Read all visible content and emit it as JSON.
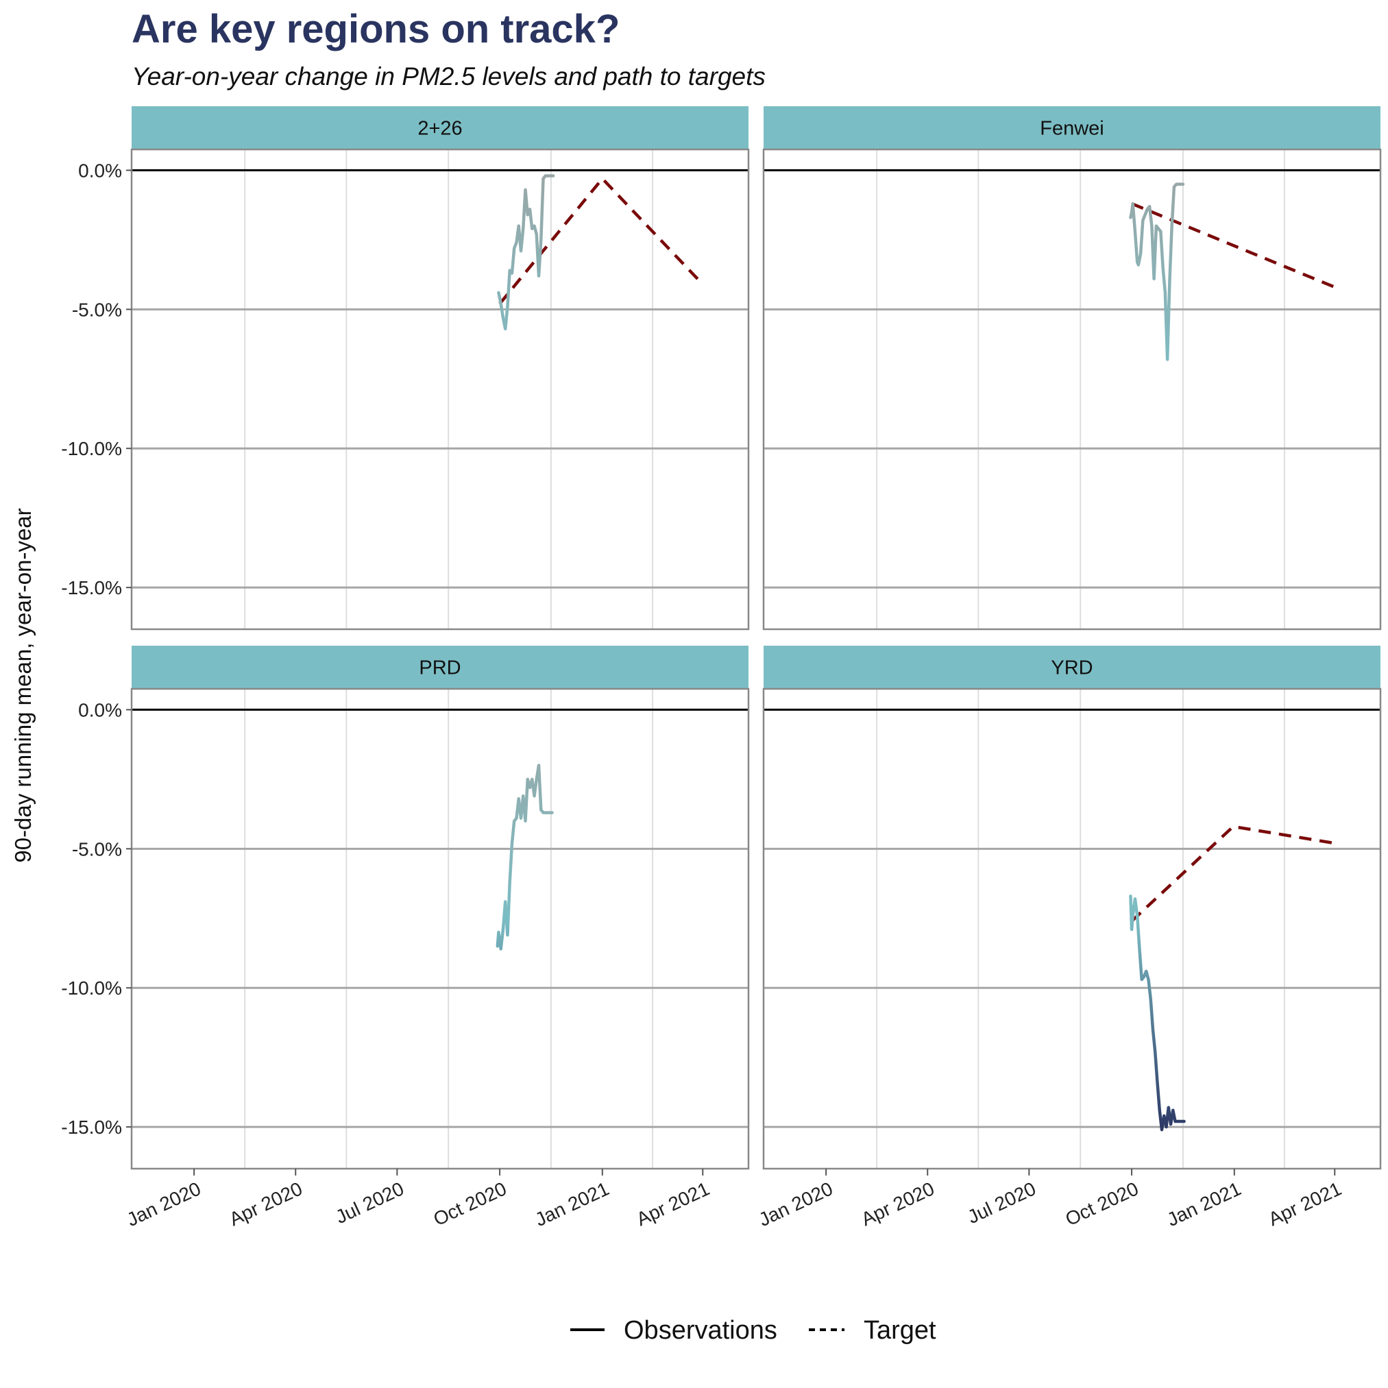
{
  "chart_data": {
    "type": "line",
    "title": "Are key regions on track?",
    "subtitle": "Year-on-year change in PM2.5 levels and path to targets",
    "ylabel": "90-day running mean, year-on-year",
    "xlabel": "",
    "xlim": [
      "2019-11-06",
      "2021-05-12"
    ],
    "ylim": [
      -16.5,
      0.75
    ],
    "y_ticks": [
      0,
      -5,
      -10,
      -15
    ],
    "y_tick_labels": [
      "0.0%",
      "-5.0%",
      "-10.0%",
      "-15.0%"
    ],
    "x_ticks": [
      "2020-01-01",
      "2020-04-01",
      "2020-07-01",
      "2020-10-01",
      "2021-01-01",
      "2021-04-01"
    ],
    "x_tick_labels": [
      "Jan 2020",
      "Apr 2020",
      "Jul 2020",
      "Oct 2020",
      "Jan 2021",
      "Apr 2021"
    ],
    "reference_line": 0,
    "grid": true,
    "legend": {
      "position": "bottom",
      "entries": [
        {
          "label": "Observations",
          "style": "solid"
        },
        {
          "label": "Target",
          "style": "dashed"
        }
      ]
    },
    "colors": {
      "strip": "#7bbdc4",
      "target": "#7a0a0a",
      "obs_low": "#2d3a66",
      "obs_mid": "#7bbdc4",
      "obs_high": "#9aa6a6",
      "title": "#2a3460"
    },
    "panels": [
      {
        "name": "2+26",
        "target": {
          "x": [
            "2020-10-01",
            "2021-01-01",
            "2021-04-01"
          ],
          "y": [
            -4.8,
            -0.3,
            -4.1
          ]
        },
        "observations": {
          "x": [
            "2020-09-30",
            "2020-10-02",
            "2020-10-04",
            "2020-10-06",
            "2020-10-08",
            "2020-10-10",
            "2020-10-12",
            "2020-10-14",
            "2020-10-16",
            "2020-10-18",
            "2020-10-20",
            "2020-10-22",
            "2020-10-24",
            "2020-10-26",
            "2020-10-28",
            "2020-10-30",
            "2020-11-01",
            "2020-11-03",
            "2020-11-05",
            "2020-11-07",
            "2020-11-09",
            "2020-11-11",
            "2020-11-13",
            "2020-11-15",
            "2020-11-16",
            "2020-11-17",
            "2020-11-18"
          ],
          "y": [
            -4.4,
            -4.8,
            -5.3,
            -5.7,
            -4.9,
            -3.6,
            -3.7,
            -2.8,
            -2.6,
            -2.0,
            -2.9,
            -2.1,
            -0.7,
            -1.6,
            -1.4,
            -2.1,
            -2.0,
            -2.3,
            -3.8,
            -2.5,
            -0.3,
            -0.2,
            -0.2,
            -0.2,
            -0.2,
            -0.2,
            -0.2
          ]
        }
      },
      {
        "name": "Fenwei",
        "target": {
          "x": [
            "2020-10-01",
            "2021-04-01"
          ],
          "y": [
            -1.2,
            -4.2
          ]
        },
        "observations": {
          "x": [
            "2020-09-30",
            "2020-10-01",
            "2020-10-02",
            "2020-10-04",
            "2020-10-06",
            "2020-10-07",
            "2020-10-09",
            "2020-10-11",
            "2020-10-13",
            "2020-10-15",
            "2020-10-17",
            "2020-10-19",
            "2020-10-21",
            "2020-10-23",
            "2020-10-25",
            "2020-10-27",
            "2020-10-29",
            "2020-10-31",
            "2020-11-02",
            "2020-11-04",
            "2020-11-06",
            "2020-11-08",
            "2020-11-10",
            "2020-11-12",
            "2020-11-14",
            "2020-11-16"
          ],
          "y": [
            -1.7,
            -1.5,
            -1.2,
            -2.2,
            -3.3,
            -3.4,
            -3.0,
            -1.8,
            -1.6,
            -1.4,
            -1.3,
            -2.0,
            -3.9,
            -2.0,
            -2.1,
            -2.2,
            -3.5,
            -4.4,
            -6.8,
            -4.0,
            -2.0,
            -0.6,
            -0.5,
            -0.5,
            -0.5,
            -0.5
          ]
        }
      },
      {
        "name": "PRD",
        "target": null,
        "observations": {
          "x": [
            "2020-09-29",
            "2020-09-30",
            "2020-10-02",
            "2020-10-04",
            "2020-10-06",
            "2020-10-08",
            "2020-10-10",
            "2020-10-12",
            "2020-10-14",
            "2020-10-16",
            "2020-10-18",
            "2020-10-20",
            "2020-10-22",
            "2020-10-24",
            "2020-10-26",
            "2020-10-28",
            "2020-10-30",
            "2020-11-01",
            "2020-11-03",
            "2020-11-05",
            "2020-11-07",
            "2020-11-09",
            "2020-11-11",
            "2020-11-13",
            "2020-11-15",
            "2020-11-17"
          ],
          "y": [
            -8.5,
            -8.0,
            -8.6,
            -7.9,
            -6.9,
            -8.1,
            -6.2,
            -4.8,
            -4.0,
            -3.9,
            -3.2,
            -3.9,
            -3.1,
            -4.0,
            -2.5,
            -2.8,
            -2.5,
            -3.1,
            -2.5,
            -2.0,
            -3.6,
            -3.7,
            -3.7,
            -3.7,
            -3.7,
            -3.7
          ]
        }
      },
      {
        "name": "YRD",
        "target": {
          "x": [
            "2020-10-01",
            "2020-12-31",
            "2021-04-01"
          ],
          "y": [
            -7.6,
            -4.2,
            -4.8
          ]
        },
        "observations": {
          "x": [
            "2020-09-30",
            "2020-10-01",
            "2020-10-02",
            "2020-10-04",
            "2020-10-06",
            "2020-10-08",
            "2020-10-10",
            "2020-10-12",
            "2020-10-14",
            "2020-10-16",
            "2020-10-18",
            "2020-10-20",
            "2020-10-22",
            "2020-10-24",
            "2020-10-26",
            "2020-10-28",
            "2020-10-30",
            "2020-11-01",
            "2020-11-03",
            "2020-11-05",
            "2020-11-07",
            "2020-11-09",
            "2020-11-11",
            "2020-11-13",
            "2020-11-15",
            "2020-11-17"
          ],
          "y": [
            -6.7,
            -7.9,
            -7.4,
            -6.8,
            -7.4,
            -8.6,
            -9.7,
            -9.6,
            -9.4,
            -9.7,
            -10.4,
            -11.5,
            -12.3,
            -13.4,
            -14.4,
            -15.1,
            -14.6,
            -15.0,
            -14.3,
            -14.9,
            -14.4,
            -14.8,
            -14.8,
            -14.8,
            -14.8,
            -14.8
          ]
        }
      }
    ]
  }
}
